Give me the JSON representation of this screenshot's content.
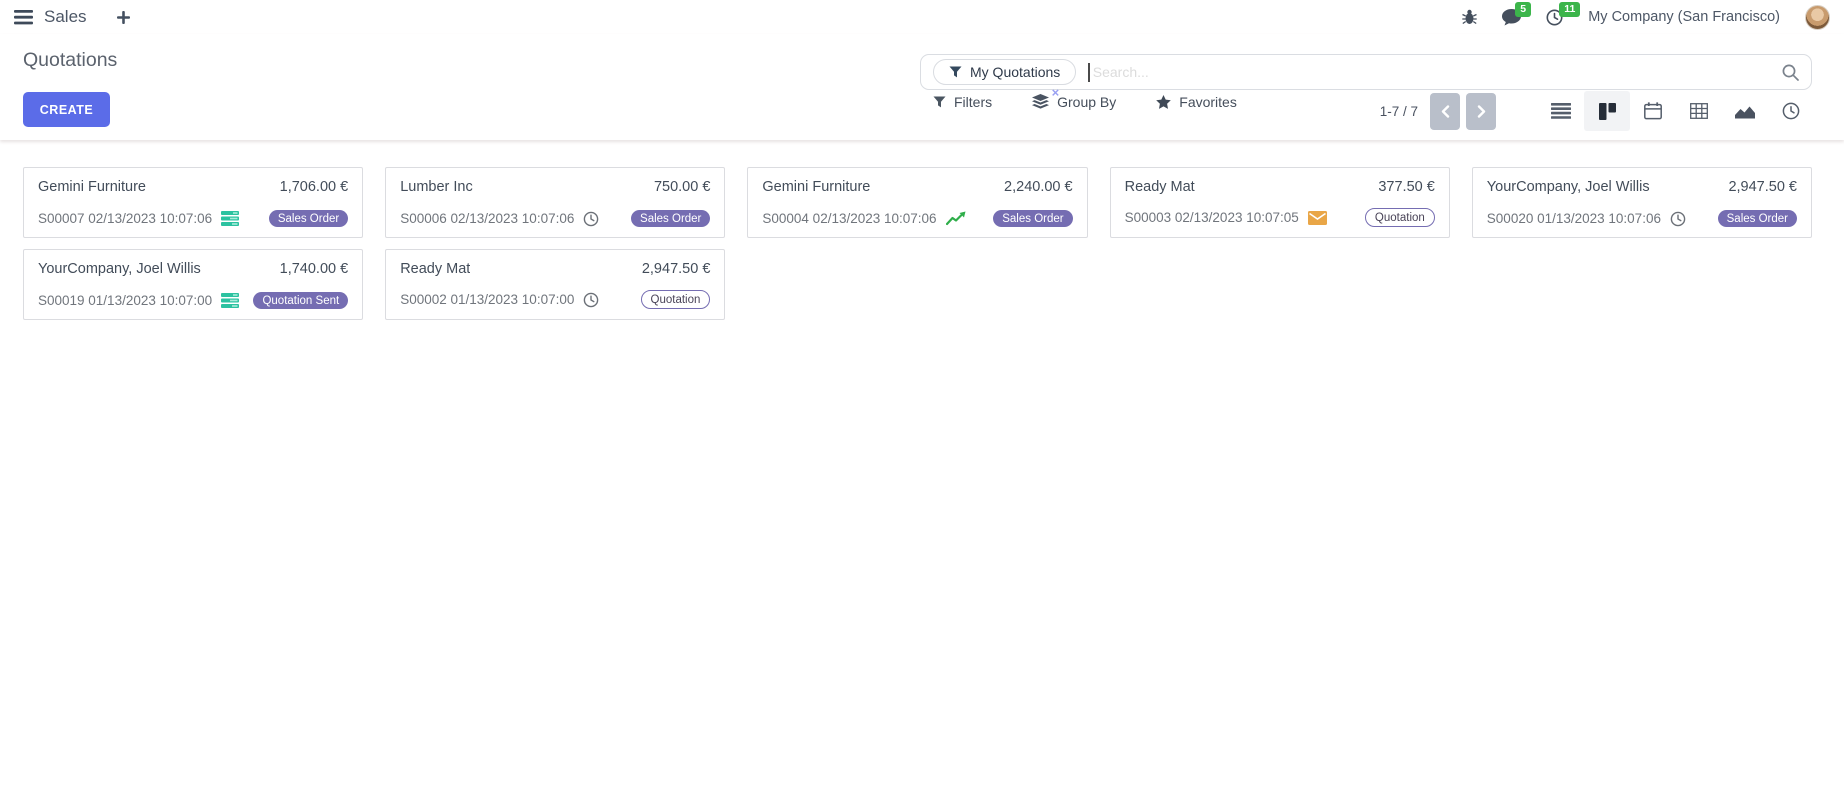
{
  "navbar": {
    "app_name": "Sales",
    "message_count": "5",
    "activity_count": "11",
    "company": "My Company (San Francisco)"
  },
  "control_panel": {
    "title": "Quotations",
    "create_label": "CREATE",
    "search": {
      "facet": "My Quotations",
      "facet_remove": "×",
      "placeholder": "Search..."
    },
    "filters_label": "Filters",
    "group_by_label": "Group By",
    "favorites_label": "Favorites",
    "pager": "1-7 / 7",
    "view_switcher": {
      "views": [
        "list",
        "kanban",
        "calendar",
        "pivot",
        "graph",
        "activity"
      ],
      "active": "kanban"
    }
  },
  "cards": [
    {
      "customer": "Gemini Furniture",
      "amount": "1,706.00 €",
      "ref": "S00007 02/13/2023 10:07:06",
      "icon": "tasks",
      "badge": "Sales Order",
      "badge_style": "filled"
    },
    {
      "customer": "Lumber Inc",
      "amount": "750.00 €",
      "ref": "S00006 02/13/2023 10:07:06",
      "icon": "clock",
      "badge": "Sales Order",
      "badge_style": "filled"
    },
    {
      "customer": "Gemini Furniture",
      "amount": "2,240.00 €",
      "ref": "S00004 02/13/2023 10:07:06",
      "icon": "chart",
      "badge": "Sales Order",
      "badge_style": "filled"
    },
    {
      "customer": "Ready Mat",
      "amount": "377.50 €",
      "ref": "S00003 02/13/2023 10:07:05",
      "icon": "envelope",
      "badge": "Quotation",
      "badge_style": "outline"
    },
    {
      "customer": "YourCompany, Joel Willis",
      "amount": "2,947.50 €",
      "ref": "S00020 01/13/2023 10:07:06",
      "icon": "clock",
      "badge": "Sales Order",
      "badge_style": "filled"
    },
    {
      "customer": "YourCompany, Joel Willis",
      "amount": "1,740.00 €",
      "ref": "S00019 01/13/2023 10:07:00",
      "icon": "tasks",
      "badge": "Quotation Sent",
      "badge_style": "filled"
    },
    {
      "customer": "Ready Mat",
      "amount": "2,947.50 €",
      "ref": "S00002 01/13/2023 10:07:00",
      "icon": "clock",
      "badge": "Quotation",
      "badge_style": "outline"
    }
  ],
  "colors": {
    "accent": "#5b6ce8",
    "badge_purple": "#756db2",
    "green": "#3cb54b",
    "teal_icon": "#2cc2a0",
    "green_icon": "#2fae4a",
    "orange_icon": "#e9a647"
  }
}
